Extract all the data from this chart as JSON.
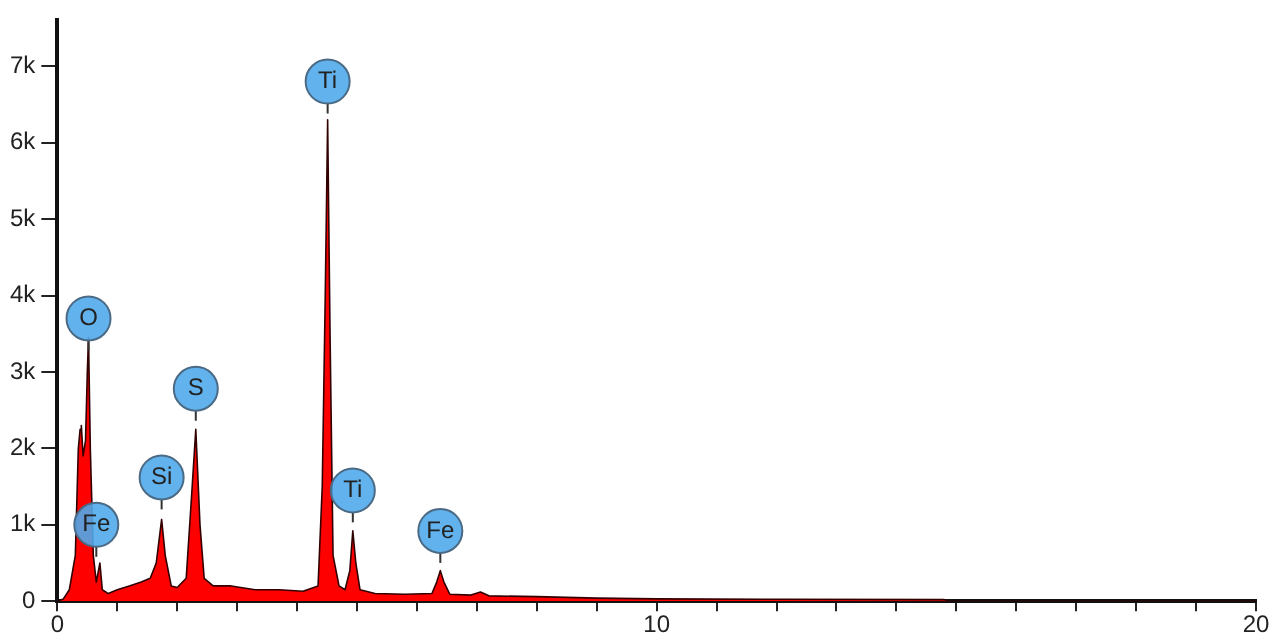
{
  "chart_data": {
    "type": "area",
    "color": "#ff0000",
    "x": [
      0,
      0.1,
      0.2,
      0.3,
      0.35,
      0.38,
      0.4,
      0.43,
      0.47,
      0.5,
      0.52,
      0.55,
      0.6,
      0.65,
      0.71,
      0.75,
      0.85,
      1.0,
      1.2,
      1.4,
      1.55,
      1.65,
      1.74,
      1.8,
      1.9,
      2.0,
      2.15,
      2.25,
      2.31,
      2.38,
      2.45,
      2.6,
      2.9,
      3.3,
      3.7,
      4.1,
      4.35,
      4.42,
      4.47,
      4.51,
      4.55,
      4.6,
      4.7,
      4.8,
      4.88,
      4.93,
      4.98,
      5.05,
      5.3,
      5.8,
      6.25,
      6.33,
      6.39,
      6.45,
      6.55,
      6.9,
      7.06,
      7.2,
      8,
      9,
      10,
      12,
      14.8,
      14.9,
      20
    ],
    "values": [
      0,
      30,
      150,
      600,
      2000,
      2250,
      2300,
      1900,
      2100,
      3000,
      3450,
      2000,
      600,
      250,
      500,
      150,
      100,
      150,
      200,
      250,
      300,
      500,
      1070,
      600,
      200,
      180,
      300,
      1500,
      2250,
      1000,
      300,
      200,
      200,
      150,
      150,
      130,
      200,
      1500,
      4000,
      6300,
      3500,
      600,
      200,
      150,
      400,
      920,
      500,
      150,
      100,
      90,
      100,
      250,
      400,
      250,
      90,
      80,
      120,
      70,
      60,
      40,
      30,
      25,
      20,
      0,
      0
    ],
    "xlim": [
      0,
      20
    ],
    "xticks": [
      0,
      {
        "value": 1,
        "label": null
      },
      {
        "value": 2,
        "label": null
      },
      {
        "value": 3,
        "label": null
      },
      {
        "value": 4,
        "label": null
      },
      {
        "value": 5,
        "label": null
      },
      {
        "value": 6,
        "label": null
      },
      {
        "value": 7,
        "label": null
      },
      {
        "value": 8,
        "label": null
      },
      {
        "value": 9,
        "label": null
      },
      10,
      {
        "value": 11,
        "label": null
      },
      {
        "value": 12,
        "label": null
      },
      {
        "value": 13,
        "label": null
      },
      {
        "value": 14,
        "label": null
      },
      {
        "value": 15,
        "label": null
      },
      {
        "value": 16,
        "label": null
      },
      {
        "value": 17,
        "label": null
      },
      {
        "value": 18,
        "label": null
      },
      {
        "value": 19,
        "label": null
      },
      20
    ],
    "ylim": [
      0,
      7600
    ],
    "yticks": [
      0,
      {
        "value": 1000,
        "label": "1k"
      },
      {
        "value": 2000,
        "label": "2k"
      },
      {
        "value": 3000,
        "label": "3k"
      },
      {
        "value": 4000,
        "label": "4k"
      },
      {
        "value": 5000,
        "label": "5k"
      },
      {
        "value": 6000,
        "label": "6k"
      },
      {
        "value": 7000,
        "label": "7k"
      }
    ],
    "grid": false,
    "legend": false,
    "annotations": [
      {
        "text": "O",
        "x": 0.52,
        "y": 3700
      },
      {
        "text": "Fe",
        "x": 0.65,
        "y": 1000
      },
      {
        "text": "Si",
        "x": 1.74,
        "y": 1620
      },
      {
        "text": "S",
        "x": 2.31,
        "y": 2780
      },
      {
        "text": "Ti",
        "x": 4.51,
        "y": 6800
      },
      {
        "text": "Ti",
        "x": 4.93,
        "y": 1450
      },
      {
        "text": "Fe",
        "x": 6.39,
        "y": 920
      }
    ]
  }
}
